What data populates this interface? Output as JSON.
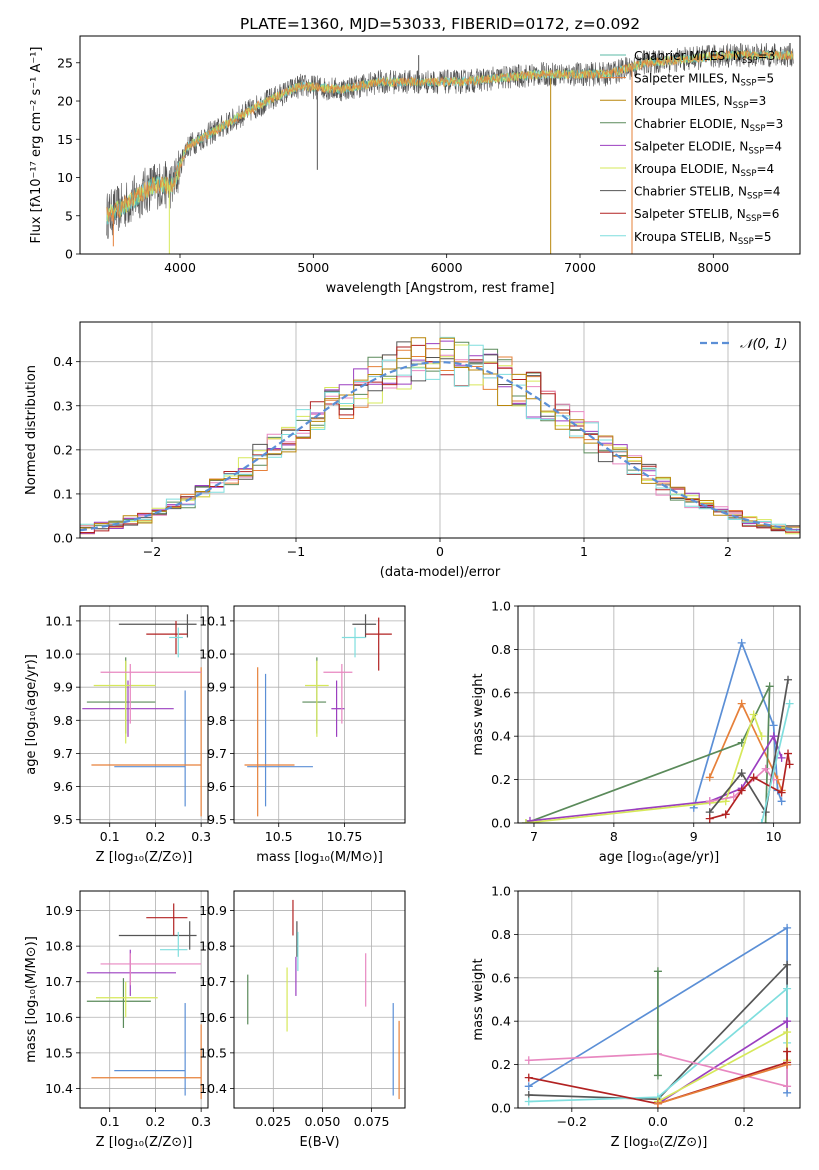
{
  "figure_title": "PLATE=1360, MJD=53033, FIBERID=0172, z=0.092",
  "colors": {
    "Chabrier MILES": "#5bb8a4",
    "Salpeter MILES": "#e6803a",
    "Kroupa MILES": "#b8860b",
    "Chabrier ELODIE": "#5a8a5a",
    "Salpeter ELODIE": "#9b3fc0",
    "Kroupa ELODIE": "#d6e85a",
    "Chabrier STELIB": "#555555",
    "Salpeter STELIB": "#b22222",
    "Kroupa STELIB": "#7fdede",
    "normal": "#5b8fd6",
    "pink": "#e887c0",
    "blue": "#5b8fd6",
    "orange": "#e6803a"
  },
  "chart_data": [
    {
      "type": "line",
      "id": "spectrum",
      "title": "PLATE=1360, MJD=53033, FIBERID=0172, z=0.092",
      "xlabel": "wavelength [Angstrom, rest frame]",
      "ylabel": "Flux [fλ10⁻¹⁷ erg cm⁻² s⁻¹ A⁻¹]",
      "xlim": [
        3250,
        8650
      ],
      "ylim": [
        0,
        28.5
      ],
      "xticks": [
        4000,
        5000,
        6000,
        7000,
        8000
      ],
      "yticks": [
        0,
        5,
        10,
        15,
        20,
        25
      ],
      "grid": false,
      "legend_position": "top-right",
      "legend": [
        {
          "name": "Chabrier MILES, N",
          "sub": "SSP",
          "suffix": "=3",
          "color_key": "Chabrier MILES"
        },
        {
          "name": "Salpeter MILES, N",
          "sub": "SSP",
          "suffix": "=5",
          "color_key": "Salpeter MILES"
        },
        {
          "name": "Kroupa MILES, N",
          "sub": "SSP",
          "suffix": "=3",
          "color_key": "Kroupa MILES"
        },
        {
          "name": "Chabrier ELODIE, N",
          "sub": "SSP",
          "suffix": "=3",
          "color_key": "Chabrier ELODIE"
        },
        {
          "name": "Salpeter ELODIE, N",
          "sub": "SSP",
          "suffix": "=4",
          "color_key": "Salpeter ELODIE"
        },
        {
          "name": "Kroupa ELODIE, N",
          "sub": "SSP",
          "suffix": "=4",
          "color_key": "Kroupa ELODIE"
        },
        {
          "name": "Chabrier STELIB, N",
          "sub": "SSP",
          "suffix": "=4",
          "color_key": "Chabrier STELIB"
        },
        {
          "name": "Salpeter STELIB, N",
          "sub": "SSP",
          "suffix": "=6",
          "color_key": "Salpeter STELIB"
        },
        {
          "name": "Kroupa STELIB, N",
          "sub": "SSP",
          "suffix": "=5",
          "color_key": "Kroupa STELIB"
        }
      ],
      "continuum": {
        "x": [
          3450,
          3600,
          3800,
          3950,
          4050,
          4300,
          4600,
          4900,
          5200,
          5500,
          5800,
          6100,
          6400,
          6700,
          7000,
          7200,
          7500,
          7800,
          8100,
          8400,
          8600
        ],
        "y": [
          5,
          6.5,
          9,
          9,
          14,
          16.5,
          19.5,
          22,
          21.5,
          22.5,
          22.5,
          22.5,
          23,
          23.5,
          23.5,
          23.5,
          25,
          25.5,
          26,
          26,
          26
        ]
      },
      "vertical_spikes": [
        {
          "x": 3500,
          "y0": 1,
          "y1": 5,
          "color_key": "Salpeter MILES"
        },
        {
          "x": 3920,
          "y0": 0,
          "y1": 9,
          "color_key": "Kroupa ELODIE"
        },
        {
          "x": 5030,
          "y0": 11,
          "y1": 21,
          "color_key": "Chabrier STELIB"
        },
        {
          "x": 5790,
          "y0": 21,
          "y1": 26,
          "color_key": "Chabrier STELIB"
        },
        {
          "x": 6780,
          "y0": 0,
          "y1": 23,
          "color_key": "Kroupa MILES"
        },
        {
          "x": 7390,
          "y0": 0,
          "y1": 25,
          "color_key": "Salpeter MILES"
        }
      ]
    },
    {
      "type": "line",
      "id": "residual-histogram",
      "xlabel": "(data-model)/error",
      "ylabel": "Normed distribution",
      "xlim": [
        -2.5,
        2.5
      ],
      "ylim": [
        0,
        0.49
      ],
      "xticks": [
        -2,
        -1,
        0,
        1,
        2
      ],
      "yticks": [
        0.0,
        0.1,
        0.2,
        0.3,
        0.4
      ],
      "grid": true,
      "legend_position": "top-right",
      "legend": [
        {
          "name": "𝒩(0, 1)",
          "color_key": "normal",
          "dashed": true
        }
      ],
      "bin_width": 0.1,
      "series_color_keys": [
        "Chabrier ELODIE",
        "Salpeter MILES",
        "Kroupa ELODIE",
        "pink",
        "Salpeter ELODIE",
        "Chabrier STELIB",
        "Salpeter STELIB",
        "Kroupa STELIB",
        "Kroupa MILES"
      ]
    },
    {
      "type": "scatter",
      "id": "age-vs-metallicity",
      "xlabel": "Z [log₁₀(Z/Z⊙)]",
      "ylabel": "age  [log₁₀(age/yr)]",
      "xlim": [
        0.035,
        0.315
      ],
      "ylim": [
        9.49,
        10.145
      ],
      "xticks": [
        0.1,
        0.2,
        0.3
      ],
      "yticks": [
        9.5,
        9.6,
        9.7,
        9.8,
        9.9,
        10.0,
        10.1
      ],
      "grid": true,
      "points": [
        {
          "x": 0.265,
          "y": 9.66,
          "xl": 0.11,
          "xh": 0.265,
          "yl": 9.54,
          "yh": 9.89,
          "color_key": "blue"
        },
        {
          "x": 0.3,
          "y": 9.665,
          "xl": 0.06,
          "xh": 0.3,
          "yl": 9.51,
          "yh": 9.96,
          "color_key": "orange"
        },
        {
          "x": 0.135,
          "y": 9.855,
          "xl": 0.05,
          "xh": 0.2,
          "yl": 9.76,
          "yh": 9.99,
          "color_key": "Chabrier ELODIE"
        },
        {
          "x": 0.14,
          "y": 9.835,
          "xl": 0.04,
          "xh": 0.24,
          "yl": 9.75,
          "yh": 9.92,
          "color_key": "Salpeter ELODIE"
        },
        {
          "x": 0.135,
          "y": 9.905,
          "xl": 0.065,
          "xh": 0.2,
          "yl": 9.73,
          "yh": 9.98,
          "color_key": "Kroupa ELODIE"
        },
        {
          "x": 0.145,
          "y": 9.945,
          "xl": 0.08,
          "xh": 0.3,
          "yl": 9.79,
          "yh": 9.97,
          "color_key": "pink"
        },
        {
          "x": 0.27,
          "y": 10.09,
          "xl": 0.12,
          "xh": 0.29,
          "yl": 10.05,
          "yh": 10.12,
          "color_key": "Chabrier STELIB"
        },
        {
          "x": 0.245,
          "y": 10.06,
          "xl": 0.18,
          "xh": 0.27,
          "yl": 10.0,
          "yh": 10.1,
          "color_key": "Salpeter STELIB"
        },
        {
          "x": 0.25,
          "y": 10.05,
          "xl": 0.23,
          "xh": 0.26,
          "yl": 9.99,
          "yh": 10.08,
          "color_key": "Kroupa STELIB"
        }
      ]
    },
    {
      "type": "scatter",
      "id": "age-vs-mass",
      "xlabel": "mass [log₁₀(M/M⊙)]",
      "ylabel": "",
      "xlim": [
        10.33,
        10.98
      ],
      "ylim": [
        9.49,
        10.145
      ],
      "xticks": [
        10.5,
        10.75
      ],
      "yticks": [
        9.5,
        9.6,
        9.7,
        9.8,
        9.9,
        10.0,
        10.1
      ],
      "grid": true,
      "points": [
        {
          "x": 10.45,
          "y": 9.66,
          "xl": 10.38,
          "xh": 10.63,
          "yl": 9.54,
          "yh": 9.94,
          "color_key": "blue"
        },
        {
          "x": 10.42,
          "y": 9.665,
          "xl": 10.37,
          "xh": 10.56,
          "yl": 9.51,
          "yh": 9.96,
          "color_key": "orange"
        },
        {
          "x": 10.645,
          "y": 9.855,
          "xl": 10.59,
          "xh": 10.68,
          "yl": 9.76,
          "yh": 9.99,
          "color_key": "Chabrier ELODIE"
        },
        {
          "x": 10.72,
          "y": 9.835,
          "xl": 10.7,
          "xh": 10.75,
          "yl": 9.75,
          "yh": 9.92,
          "color_key": "Salpeter ELODIE"
        },
        {
          "x": 10.645,
          "y": 9.905,
          "xl": 10.6,
          "xh": 10.69,
          "yl": 9.75,
          "yh": 9.98,
          "color_key": "Kroupa ELODIE"
        },
        {
          "x": 10.74,
          "y": 9.945,
          "xl": 10.67,
          "xh": 10.78,
          "yl": 9.79,
          "yh": 9.97,
          "color_key": "pink"
        },
        {
          "x": 10.83,
          "y": 10.09,
          "xl": 10.78,
          "xh": 10.87,
          "yl": 10.05,
          "yh": 10.12,
          "color_key": "Chabrier STELIB"
        },
        {
          "x": 10.88,
          "y": 10.06,
          "xl": 10.83,
          "xh": 10.93,
          "yl": 9.95,
          "yh": 10.11,
          "color_key": "Salpeter STELIB"
        },
        {
          "x": 10.79,
          "y": 10.05,
          "xl": 10.74,
          "xh": 10.83,
          "yl": 9.99,
          "yh": 10.08,
          "color_key": "Kroupa STELIB"
        }
      ]
    },
    {
      "type": "line",
      "id": "mass-weight-vs-age",
      "xlabel": "age  [log₁₀(age/yr)]",
      "ylabel": "mass weight",
      "xlim": [
        6.8,
        10.33
      ],
      "ylim": [
        0,
        1.0
      ],
      "xticks": [
        7,
        8,
        9,
        10
      ],
      "yticks": [
        0.0,
        0.2,
        0.4,
        0.6,
        0.8,
        1.0
      ],
      "grid": true,
      "series": [
        {
          "color_key": "blue",
          "x": [
            9.0,
            9.6,
            10.0,
            10.05,
            10.1
          ],
          "y": [
            0.07,
            0.83,
            0.45,
            0.15,
            0.1
          ]
        },
        {
          "color_key": "orange",
          "x": [
            9.2,
            9.6,
            10.05,
            10.1
          ],
          "y": [
            0.21,
            0.55,
            0.2,
            0.15
          ]
        },
        {
          "color_key": "Chabrier ELODIE",
          "x": [
            6.9,
            9.6,
            9.95,
            9.9
          ],
          "y": [
            0.0,
            0.37,
            0.63,
            0.0
          ]
        },
        {
          "color_key": "Salpeter ELODIE",
          "x": [
            6.95,
            9.2,
            9.6,
            10.0,
            10.1
          ],
          "y": [
            0.01,
            0.1,
            0.16,
            0.4,
            0.3
          ]
        },
        {
          "color_key": "Kroupa ELODIE",
          "x": [
            6.9,
            9.4,
            9.75,
            9.85
          ],
          "y": [
            0.0,
            0.1,
            0.5,
            0.4
          ]
        },
        {
          "color_key": "pink",
          "x": [
            9.2,
            9.5,
            9.9,
            10.0
          ],
          "y": [
            0.1,
            0.12,
            0.25,
            0.2
          ]
        },
        {
          "color_key": "Chabrier STELIB",
          "x": [
            9.2,
            9.6,
            9.9,
            10.18
          ],
          "y": [
            0.05,
            0.23,
            0.05,
            0.66
          ]
        },
        {
          "color_key": "Salpeter STELIB",
          "x": [
            9.2,
            9.4,
            9.6,
            9.75,
            10.1,
            10.18,
            10.2
          ],
          "y": [
            0.02,
            0.04,
            0.15,
            0.21,
            0.14,
            0.32,
            0.27
          ]
        },
        {
          "color_key": "Kroupa STELIB",
          "x": [
            9.85,
            10.2
          ],
          "y": [
            0.0,
            0.55
          ]
        }
      ]
    },
    {
      "type": "scatter",
      "id": "mass-vs-metallicity",
      "xlabel": "Z [log₁₀(Z/Z⊙)]",
      "ylabel": "mass [log₁₀(M/M⊙)]",
      "xlim": [
        0.035,
        0.315
      ],
      "ylim": [
        10.345,
        10.955
      ],
      "xticks": [
        0.1,
        0.2,
        0.3
      ],
      "yticks": [
        10.4,
        10.5,
        10.6,
        10.7,
        10.8,
        10.9
      ],
      "grid": true,
      "points": [
        {
          "x": 0.265,
          "y": 10.45,
          "xl": 0.11,
          "xh": 0.265,
          "yl": 10.38,
          "yh": 10.64,
          "color_key": "blue"
        },
        {
          "x": 0.3,
          "y": 10.43,
          "xl": 0.06,
          "xh": 0.3,
          "yl": 10.37,
          "yh": 10.58,
          "color_key": "orange"
        },
        {
          "x": 0.13,
          "y": 10.645,
          "xl": 0.05,
          "xh": 0.19,
          "yl": 10.57,
          "yh": 10.71,
          "color_key": "Chabrier ELODIE"
        },
        {
          "x": 0.145,
          "y": 10.725,
          "xl": 0.05,
          "xh": 0.245,
          "yl": 10.66,
          "yh": 10.79,
          "color_key": "Salpeter ELODIE"
        },
        {
          "x": 0.135,
          "y": 10.655,
          "xl": 0.07,
          "xh": 0.205,
          "yl": 10.6,
          "yh": 10.7,
          "color_key": "Kroupa ELODIE"
        },
        {
          "x": 0.145,
          "y": 10.75,
          "xl": 0.08,
          "xh": 0.3,
          "yl": 10.69,
          "yh": 10.78,
          "color_key": "pink"
        },
        {
          "x": 0.275,
          "y": 10.83,
          "xl": 0.12,
          "xh": 0.29,
          "yl": 10.79,
          "yh": 10.87,
          "color_key": "Chabrier STELIB"
        },
        {
          "x": 0.24,
          "y": 10.88,
          "xl": 0.18,
          "xh": 0.27,
          "yl": 10.83,
          "yh": 10.92,
          "color_key": "Salpeter STELIB"
        },
        {
          "x": 0.25,
          "y": 10.79,
          "xl": 0.21,
          "xh": 0.27,
          "yl": 10.77,
          "yh": 10.84,
          "color_key": "Kroupa STELIB"
        }
      ]
    },
    {
      "type": "scatter",
      "id": "mass-vs-ebv",
      "xlabel": "E(B-V)",
      "ylabel": "",
      "xlim": [
        0.005,
        0.092
      ],
      "ylim": [
        10.345,
        10.955
      ],
      "xticks": [
        0.025,
        0.05,
        0.075
      ],
      "xtick_labels": [
        "0.025",
        "0.050",
        "0.075"
      ],
      "yticks": [
        10.4,
        10.5,
        10.6,
        10.7,
        10.8,
        10.9
      ],
      "grid": true,
      "points": [
        {
          "x": 0.012,
          "yl": 10.58,
          "yh": 10.72,
          "color_key": "Chabrier ELODIE"
        },
        {
          "x": 0.032,
          "yl": 10.56,
          "yh": 10.74,
          "color_key": "Kroupa ELODIE"
        },
        {
          "x": 0.035,
          "yl": 10.83,
          "yh": 10.93,
          "color_key": "Salpeter STELIB"
        },
        {
          "x": 0.037,
          "yl": 10.77,
          "yh": 10.87,
          "color_key": "Chabrier STELIB"
        },
        {
          "x": 0.0375,
          "yl": 10.73,
          "yh": 10.84,
          "color_key": "Kroupa STELIB"
        },
        {
          "x": 0.0365,
          "yl": 10.66,
          "yh": 10.77,
          "color_key": "Salpeter ELODIE"
        },
        {
          "x": 0.072,
          "yl": 10.63,
          "yh": 10.78,
          "color_key": "pink"
        },
        {
          "x": 0.086,
          "yl": 10.38,
          "yh": 10.64,
          "color_key": "blue"
        },
        {
          "x": 0.089,
          "yl": 10.37,
          "yh": 10.59,
          "color_key": "orange"
        }
      ]
    },
    {
      "type": "line",
      "id": "mass-weight-vs-metallicity",
      "xlabel": "Z [log₁₀(Z/Z⊙)]",
      "ylabel": "mass weight",
      "xlim": [
        -0.325,
        0.33
      ],
      "ylim": [
        0,
        1.0
      ],
      "xticks": [
        -0.2,
        0.0,
        0.2
      ],
      "xtick_labels": [
        "−0.2",
        "0.0",
        "0.2"
      ],
      "yticks": [
        0.0,
        0.2,
        0.4,
        0.6,
        0.8,
        1.0
      ],
      "grid": true,
      "series": [
        {
          "color_key": "blue",
          "x": [
            -0.3,
            0.3,
            0.3
          ],
          "y": [
            0.1,
            0.83,
            0.07
          ]
        },
        {
          "color_key": "Chabrier STELIB",
          "x": [
            -0.3,
            0.0,
            0.3,
            0.3
          ],
          "y": [
            0.06,
            0.04,
            0.66,
            0.2
          ]
        },
        {
          "color_key": "Kroupa STELIB",
          "x": [
            -0.3,
            0.0,
            0.3,
            0.3
          ],
          "y": [
            0.03,
            0.05,
            0.55,
            0.3
          ]
        },
        {
          "color_key": "Salpeter ELODIE",
          "x": [
            0.0,
            0.3,
            0.3
          ],
          "y": [
            0.02,
            0.4,
            0.2
          ]
        },
        {
          "color_key": "Kroupa ELODIE",
          "x": [
            0.0,
            0.3,
            0.3
          ],
          "y": [
            0.03,
            0.35,
            0.22
          ]
        },
        {
          "color_key": "pink",
          "x": [
            -0.3,
            0.0,
            0.3,
            0.3
          ],
          "y": [
            0.22,
            0.25,
            0.1,
            0.2
          ]
        },
        {
          "color_key": "Salpeter STELIB",
          "x": [
            -0.3,
            0.0,
            0.3,
            0.3
          ],
          "y": [
            0.14,
            0.02,
            0.21,
            0.26
          ]
        },
        {
          "color_key": "orange",
          "x": [
            0.0,
            0.3
          ],
          "y": [
            0.02,
            0.2
          ]
        },
        {
          "color_key": "Chabrier ELODIE",
          "x": [
            0.0,
            0.0
          ],
          "y": [
            0.63,
            0.15
          ]
        }
      ]
    }
  ]
}
